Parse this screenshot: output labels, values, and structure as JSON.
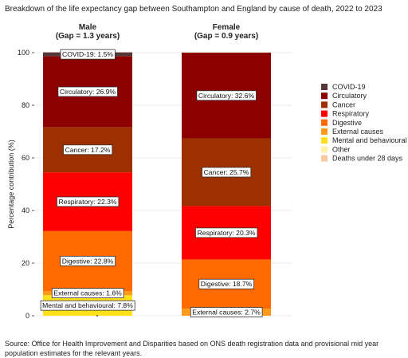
{
  "chart_data": {
    "type": "bar",
    "stacked": true,
    "title": "Breakdown of the life expectancy gap between Southampton and England by cause of death, 2022 to 2023",
    "ylabel": "Percentage contribution (%)",
    "ylim": [
      0,
      100
    ],
    "yticks": [
      0,
      20,
      40,
      60,
      80,
      100
    ],
    "grid": true,
    "legend_position": "right",
    "panels": [
      {
        "title": "Male",
        "subtitle": "(Gap = 1.3 years)"
      },
      {
        "title": "Female",
        "subtitle": "(Gap = 0.9 years)"
      }
    ],
    "series": [
      {
        "name": "Deaths under 28 days",
        "color": "#f9c8a0",
        "values": [
          0.0,
          0.0
        ],
        "labels": [
          "",
          ""
        ]
      },
      {
        "name": "Other",
        "color": "#fff1a8",
        "values": [
          0.0,
          0.0
        ],
        "labels": [
          "",
          ""
        ]
      },
      {
        "name": "Mental and behavioural",
        "color": "#ffe11a",
        "values": [
          7.8,
          0.0
        ],
        "labels": [
          "Mental and behavioural: 7.8%",
          ""
        ]
      },
      {
        "name": "External causes",
        "color": "#ff9a1a",
        "values": [
          1.6,
          2.7
        ],
        "labels": [
          "External causes: 1.6%",
          "External causes: 2.7%"
        ]
      },
      {
        "name": "Digestive",
        "color": "#ff6a00",
        "values": [
          22.8,
          18.7
        ],
        "labels": [
          "Digestive: 22.8%",
          "Digestive: 18.7%"
        ]
      },
      {
        "name": "Respiratory",
        "color": "#ff0000",
        "values": [
          22.3,
          20.3
        ],
        "labels": [
          "Respiratory: 22.3%",
          "Respiratory: 20.3%"
        ]
      },
      {
        "name": "Cancer",
        "color": "#9c3000",
        "values": [
          17.2,
          25.7
        ],
        "labels": [
          "Cancer: 17.2%",
          "Cancer: 25.7%"
        ]
      },
      {
        "name": "Circulatory",
        "color": "#8c0000",
        "values": [
          26.9,
          32.6
        ],
        "labels": [
          "Circulatory: 26.9%",
          "Circulatory: 32.6%"
        ]
      },
      {
        "name": "COVID-19",
        "color": "#553737",
        "values": [
          1.5,
          0.0
        ],
        "labels": [
          "COVID-19: 1.5%",
          ""
        ]
      }
    ],
    "legend_order": [
      "COVID-19",
      "Circulatory",
      "Cancer",
      "Respiratory",
      "Digestive",
      "External causes",
      "Mental and behavioural",
      "Other",
      "Deaths under 28 days"
    ]
  },
  "source": "Source: Office for Health Improvement and Disparities based on ONS death registration data and provisional mid year population estimates for the relevant years."
}
